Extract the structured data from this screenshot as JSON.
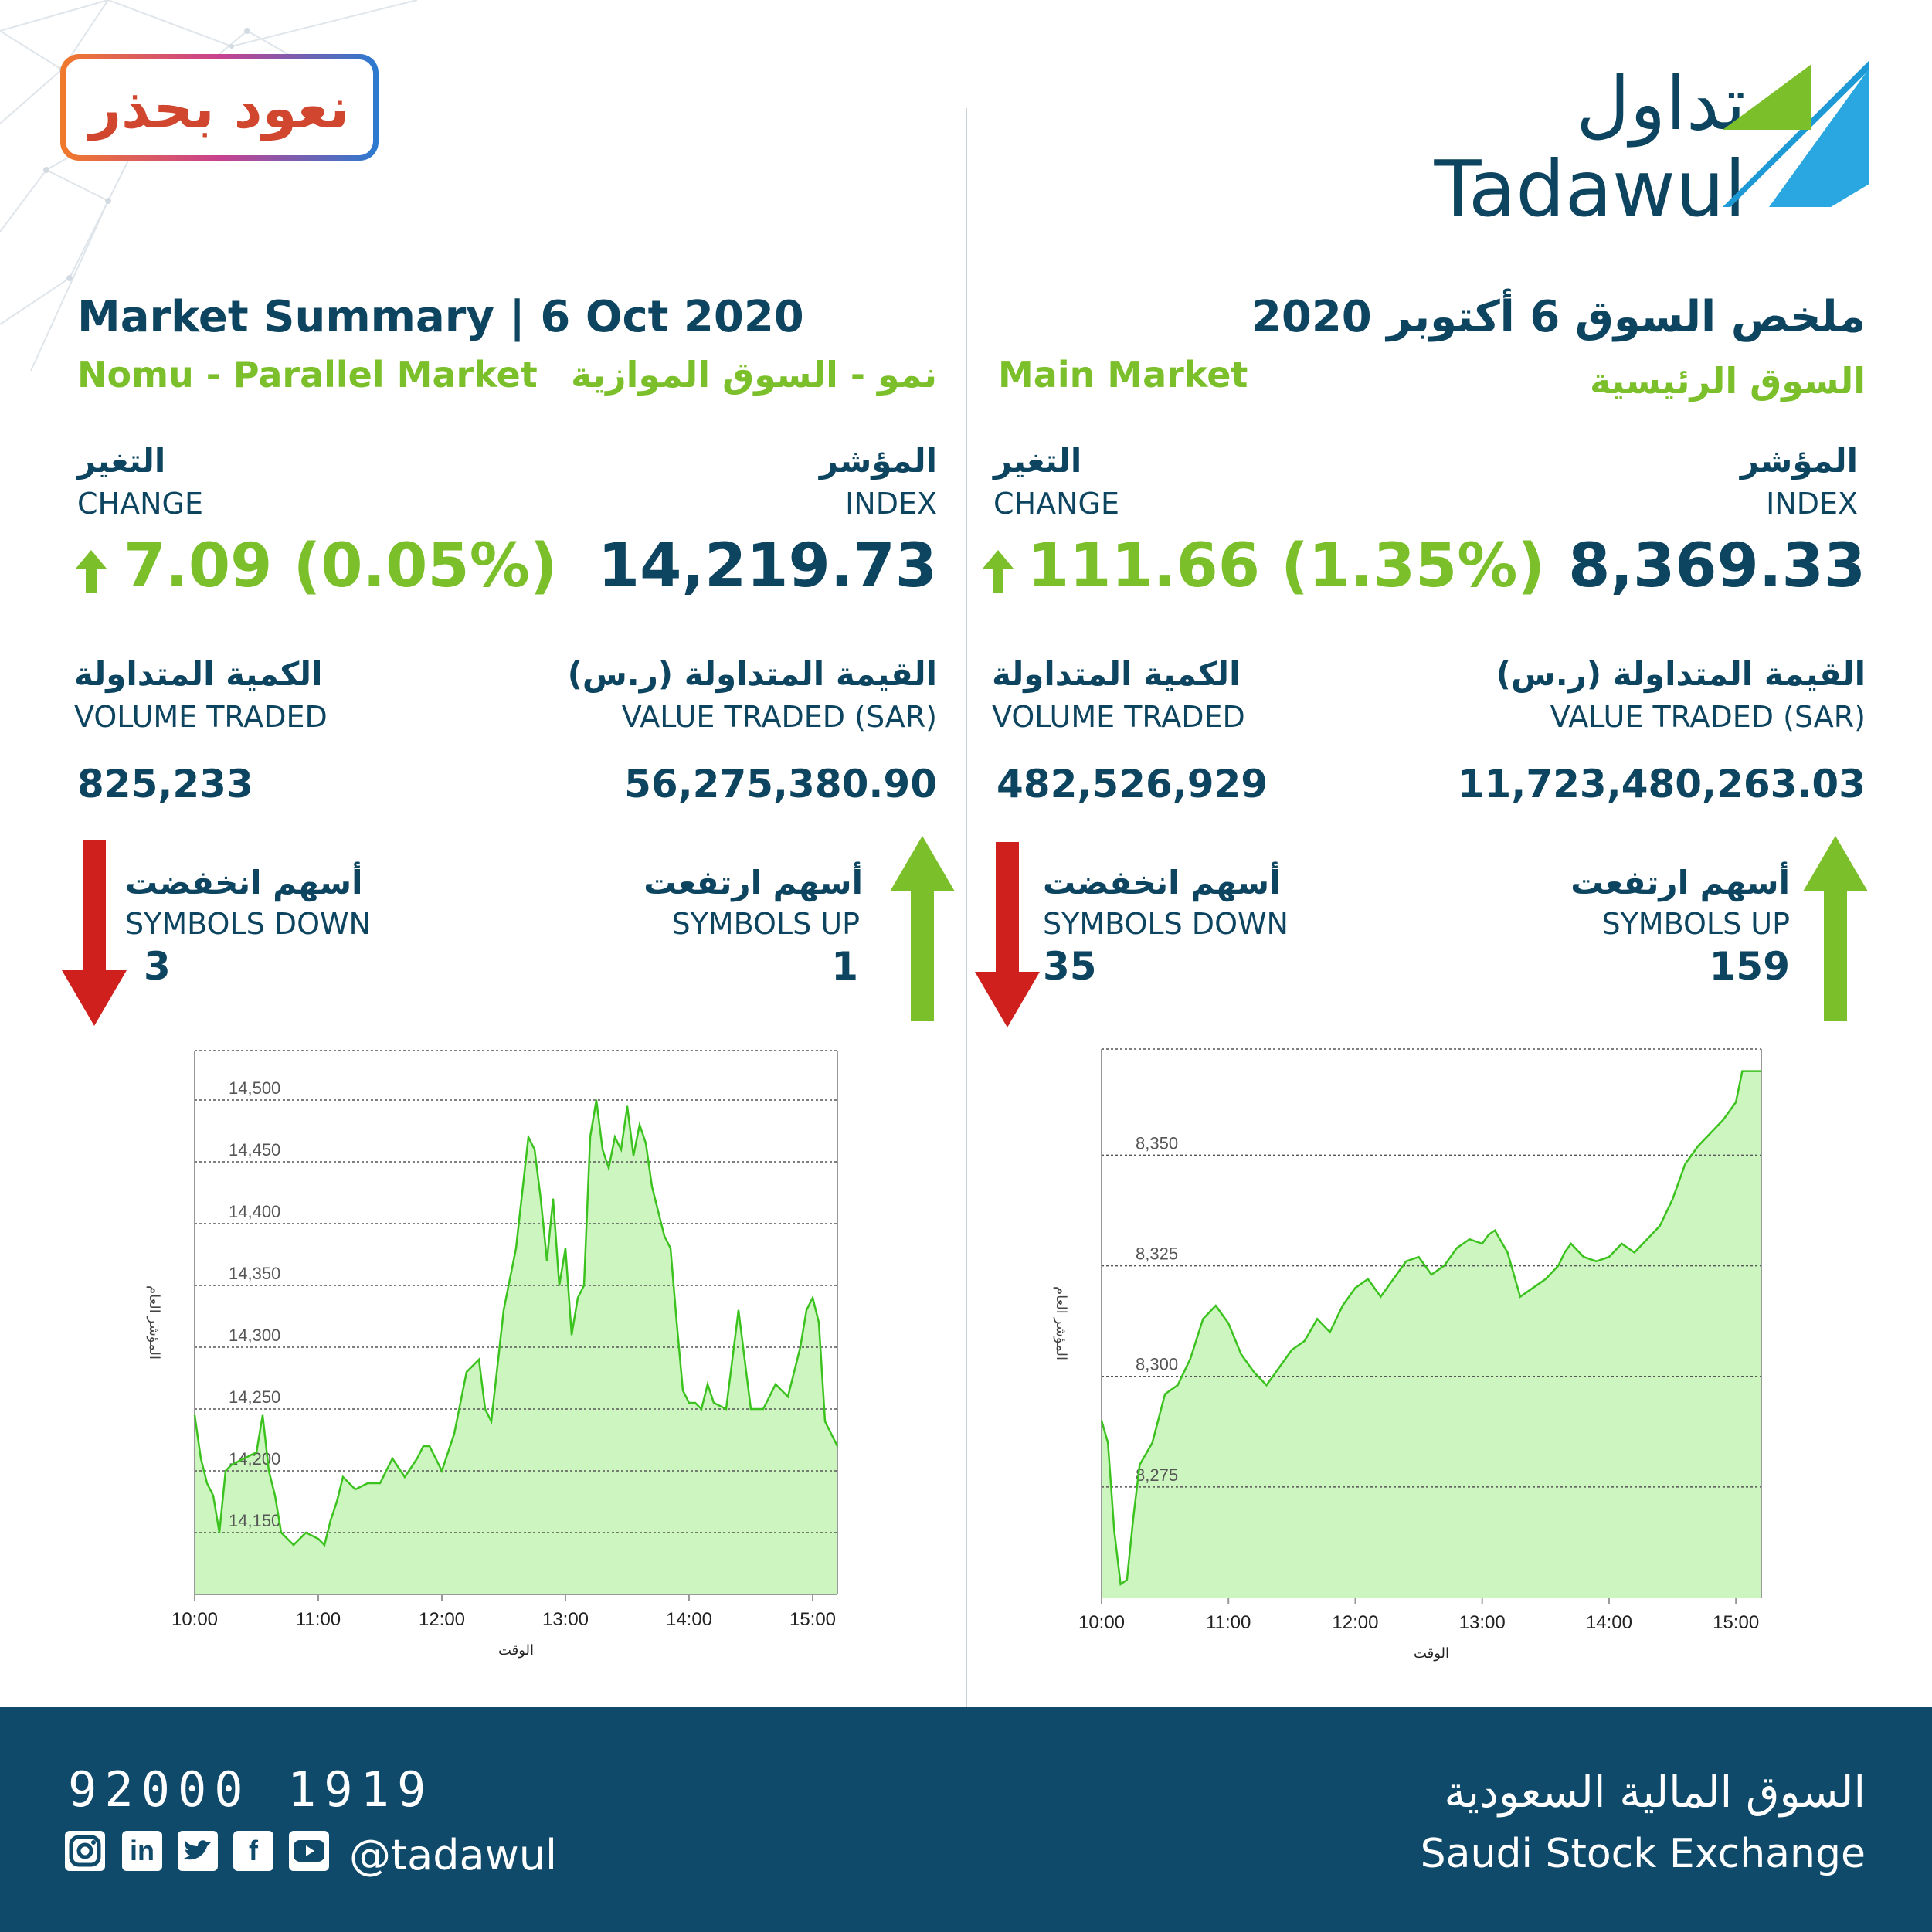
{
  "brand": {
    "logo_ar": "تداول",
    "logo_en": "Tadawul",
    "campaign_badge": "نعود بحذر"
  },
  "nomu": {
    "title": "Market Summary | 6 Oct 2020",
    "market_en": "Nomu - Parallel Market",
    "market_ar": "نمو - السوق الموازية",
    "change_ar": "التغير",
    "change_en": "CHANGE",
    "change_value": "7.09 (0.05%)",
    "index_ar": "المؤشر",
    "index_en": "INDEX",
    "index_value": "14,219.73",
    "volume_ar": "الكمية المتداولة",
    "volume_en": "VOLUME TRADED",
    "volume_value": "825,233",
    "valuetraded_ar": "القيمة المتداولة (ر.س)",
    "valuetraded_en": "VALUE TRADED (SAR)",
    "valuetraded_value": "56,275,380.90",
    "down_ar": "أسهم انخفضت",
    "down_en": "SYMBOLS DOWN",
    "down_value": "3",
    "up_ar": "أسهم ارتفعت",
    "up_en": "SYMBOLS UP",
    "up_value": "1"
  },
  "main": {
    "title": "ملخص السوق 6 أكتوبر 2020",
    "market_en": "Main Market",
    "market_ar": "السوق الرئيسية",
    "change_ar": "التغير",
    "change_en": "CHANGE",
    "change_value": "111.66 (1.35%)",
    "index_ar": "المؤشر",
    "index_en": "INDEX",
    "index_value": "8,369.33",
    "volume_ar": "الكمية المتداولة",
    "volume_en": "VOLUME TRADED",
    "volume_value": "482,526,929",
    "valuetraded_ar": "القيمة المتداولة (ر.س)",
    "valuetraded_en": "VALUE TRADED (SAR)",
    "valuetraded_value": "11,723,480,263.03",
    "down_ar": "أسهم انخفضت",
    "down_en": "SYMBOLS DOWN",
    "down_value": "35",
    "up_ar": "أسهم ارتفعت",
    "up_en": "SYMBOLS UP",
    "up_value": "159"
  },
  "colors": {
    "navy": "#0d4560",
    "green": "#7bbf2a",
    "red": "#d0201d",
    "chart_line": "#3cc21f",
    "chart_fill": "#ccf5bf",
    "footer": "#0f4a6b"
  },
  "footer": {
    "phone": "92000 1919",
    "handle": "@tadawul",
    "exchange_ar": "السوق المالية السعودية",
    "exchange_en": "Saudi Stock Exchange",
    "social_icons": [
      "instagram-icon",
      "linkedin-icon",
      "twitter-icon",
      "facebook-icon",
      "youtube-icon"
    ]
  },
  "chart_data": [
    {
      "type": "area",
      "market": "Nomu",
      "xlabel": "الوقت",
      "ylabel": "المؤشر العام",
      "ylim": [
        14100,
        14540
      ],
      "xlim": [
        10.0,
        15.2
      ],
      "x_ticks": [
        "10:00",
        "11:00",
        "12:00",
        "13:00",
        "14:00",
        "15:00"
      ],
      "y_ticks": [
        "14,150",
        "14,200",
        "14,250",
        "14,300",
        "14,350",
        "14,400",
        "14,450",
        "14,500"
      ],
      "x": [
        10.0,
        10.05,
        10.1,
        10.15,
        10.2,
        10.25,
        10.3,
        10.4,
        10.5,
        10.55,
        10.6,
        10.65,
        10.7,
        10.8,
        10.9,
        11.0,
        11.05,
        11.1,
        11.15,
        11.2,
        11.3,
        11.4,
        11.5,
        11.6,
        11.7,
        11.8,
        11.85,
        11.9,
        12.0,
        12.1,
        12.2,
        12.3,
        12.35,
        12.4,
        12.5,
        12.6,
        12.7,
        12.75,
        12.8,
        12.85,
        12.9,
        12.95,
        13.0,
        13.05,
        13.1,
        13.15,
        13.2,
        13.25,
        13.3,
        13.35,
        13.4,
        13.45,
        13.5,
        13.55,
        13.6,
        13.65,
        13.7,
        13.75,
        13.8,
        13.85,
        13.9,
        13.95,
        14.0,
        14.05,
        14.1,
        14.15,
        14.2,
        14.3,
        14.4,
        14.5,
        14.6,
        14.7,
        14.8,
        14.9,
        14.95,
        15.0,
        15.05,
        15.1,
        15.2
      ],
      "values": [
        14245,
        14210,
        14190,
        14180,
        14150,
        14200,
        14205,
        14210,
        14215,
        14245,
        14200,
        14180,
        14150,
        14140,
        14150,
        14145,
        14140,
        14160,
        14175,
        14195,
        14185,
        14190,
        14190,
        14210,
        14195,
        14210,
        14220,
        14220,
        14200,
        14230,
        14280,
        14290,
        14250,
        14240,
        14330,
        14380,
        14470,
        14460,
        14420,
        14370,
        14420,
        14350,
        14380,
        14310,
        14340,
        14350,
        14470,
        14500,
        14460,
        14445,
        14470,
        14460,
        14495,
        14455,
        14480,
        14465,
        14430,
        14410,
        14390,
        14380,
        14320,
        14265,
        14255,
        14255,
        14250,
        14270,
        14255,
        14250,
        14330,
        14250,
        14250,
        14270,
        14260,
        14300,
        14330,
        14340,
        14320,
        14240,
        14220
      ]
    },
    {
      "type": "area",
      "market": "Main",
      "xlabel": "الوقت",
      "ylabel": "المؤشر العام",
      "ylim": [
        8250,
        8374
      ],
      "xlim": [
        10.0,
        15.2
      ],
      "x_ticks": [
        "10:00",
        "11:00",
        "12:00",
        "13:00",
        "14:00",
        "15:00"
      ],
      "y_ticks": [
        "8,275",
        "8,300",
        "8,325",
        "8,350"
      ],
      "x": [
        10.0,
        10.05,
        10.1,
        10.15,
        10.2,
        10.25,
        10.3,
        10.4,
        10.5,
        10.6,
        10.7,
        10.8,
        10.9,
        11.0,
        11.1,
        11.2,
        11.3,
        11.4,
        11.5,
        11.6,
        11.7,
        11.8,
        11.9,
        12.0,
        12.1,
        12.2,
        12.3,
        12.4,
        12.5,
        12.6,
        12.7,
        12.8,
        12.9,
        13.0,
        13.05,
        13.1,
        13.2,
        13.3,
        13.4,
        13.5,
        13.6,
        13.65,
        13.7,
        13.8,
        13.9,
        14.0,
        14.1,
        14.2,
        14.3,
        14.4,
        14.5,
        14.6,
        14.7,
        14.8,
        14.9,
        15.0,
        15.05,
        15.1,
        15.2
      ],
      "values": [
        8290,
        8285,
        8265,
        8253,
        8254,
        8268,
        8280,
        8285,
        8296,
        8298,
        8304,
        8313,
        8316,
        8312,
        8305,
        8301,
        8298,
        8302,
        8306,
        8308,
        8313,
        8310,
        8316,
        8320,
        8322,
        8318,
        8322,
        8326,
        8327,
        8323,
        8325,
        8329,
        8331,
        8330,
        8332,
        8333,
        8328,
        8318,
        8320,
        8322,
        8325,
        8328,
        8330,
        8327,
        8326,
        8327,
        8330,
        8328,
        8331,
        8334,
        8340,
        8348,
        8352,
        8355,
        8358,
        8362,
        8369,
        8369,
        8369
      ]
    }
  ]
}
